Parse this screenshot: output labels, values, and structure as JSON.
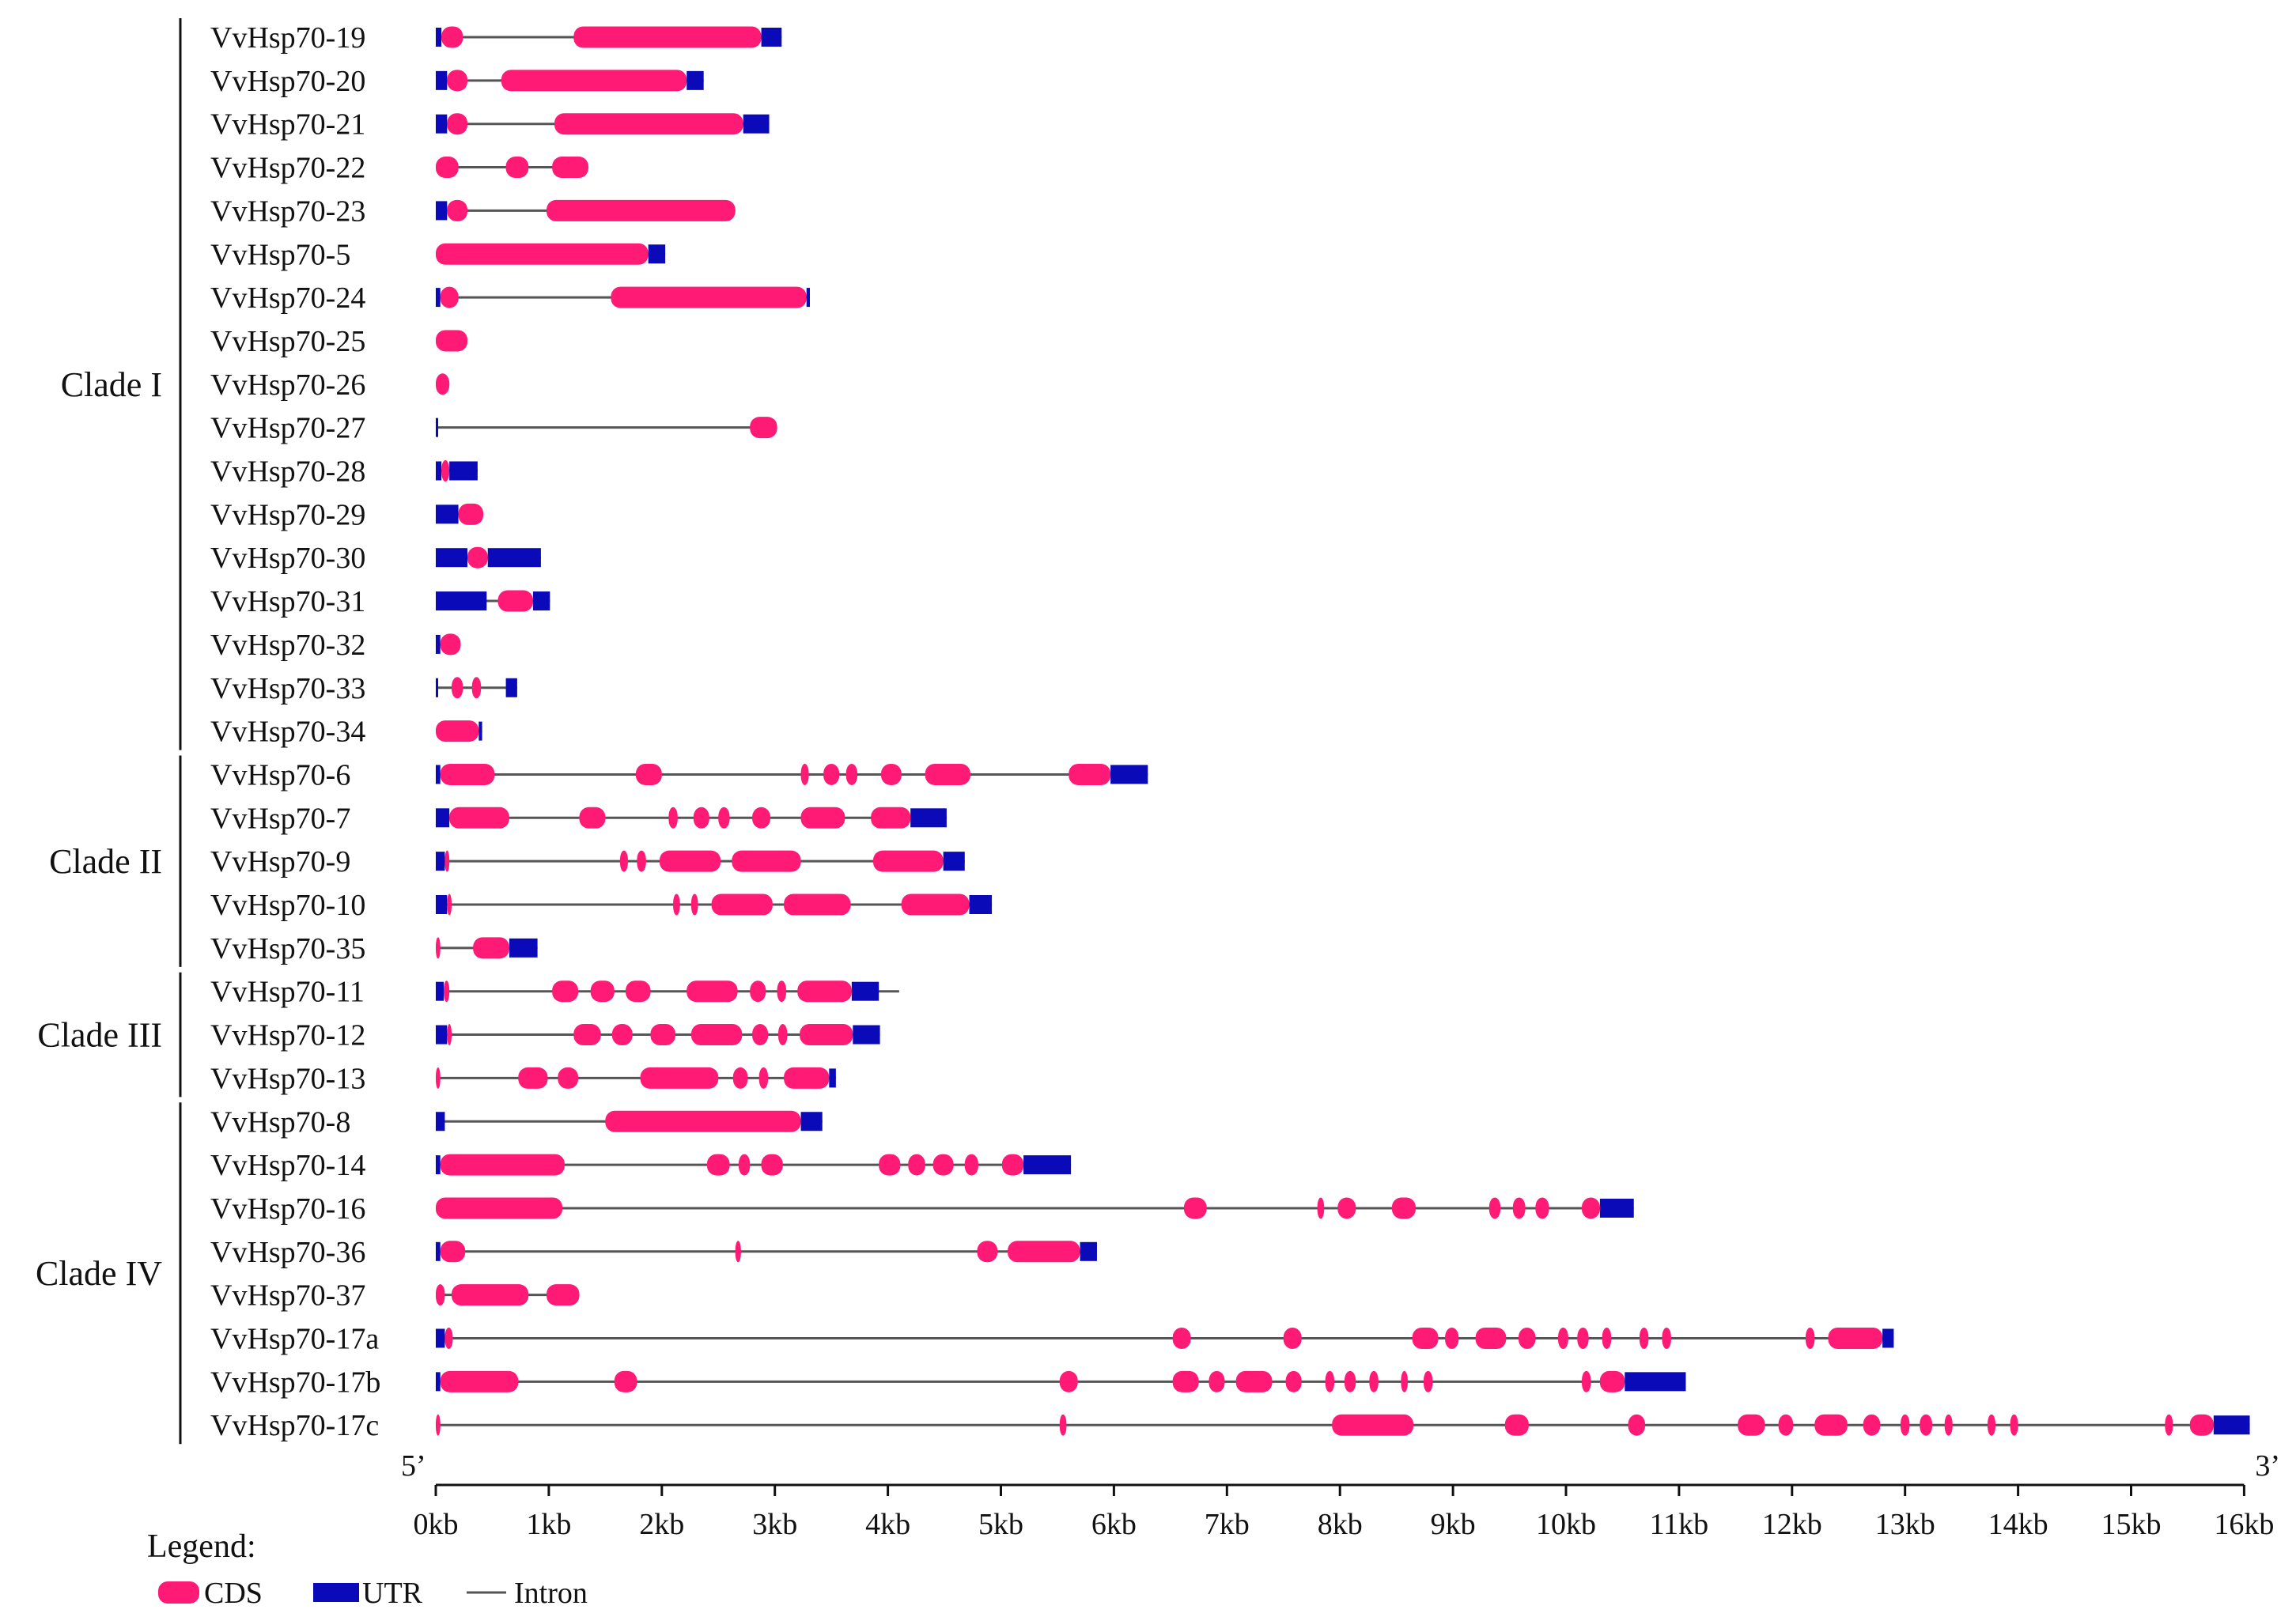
{
  "chart_data": {
    "type": "gene-structure",
    "axis": {
      "unit": "kb",
      "min": 0,
      "max": 16,
      "ticks": [
        "0kb",
        "1kb",
        "2kb",
        "3kb",
        "4kb",
        "5kb",
        "6kb",
        "7kb",
        "8kb",
        "9kb",
        "10kb",
        "11kb",
        "12kb",
        "13kb",
        "14kb",
        "15kb",
        "16kb"
      ],
      "start_label": "5’",
      "end_label": "3’"
    },
    "colors": {
      "cds": "#FF1A75",
      "utr": "#0A0AB8",
      "intron": "#555555",
      "axis": "#111111"
    },
    "legend": {
      "title": "Legend:",
      "items": [
        {
          "name": "CDS",
          "type": "cds"
        },
        {
          "name": "UTR",
          "type": "utr"
        },
        {
          "name": "Intron",
          "type": "intron"
        }
      ]
    },
    "clades": [
      {
        "name": "Clade I",
        "first": 0,
        "last": 16
      },
      {
        "name": "Clade II",
        "first": 17,
        "last": 21
      },
      {
        "name": "Clade III",
        "first": 22,
        "last": 24
      },
      {
        "name": "Clade IV",
        "first": 25,
        "last": 32
      }
    ],
    "genes": [
      {
        "name": "VvHsp70-19",
        "len": 3.06,
        "f": [
          [
            "u",
            0,
            0.05
          ],
          [
            "c",
            0.05,
            0.24
          ],
          [
            "c",
            1.22,
            2.88
          ],
          [
            "u",
            2.88,
            3.06
          ]
        ]
      },
      {
        "name": "VvHsp70-20",
        "len": 2.37,
        "f": [
          [
            "u",
            0,
            0.1
          ],
          [
            "c",
            0.1,
            0.28
          ],
          [
            "c",
            0.58,
            2.22
          ],
          [
            "u",
            2.22,
            2.37
          ]
        ]
      },
      {
        "name": "VvHsp70-21",
        "len": 2.95,
        "f": [
          [
            "u",
            0,
            0.1
          ],
          [
            "c",
            0.1,
            0.28
          ],
          [
            "c",
            1.05,
            2.72
          ],
          [
            "u",
            2.72,
            2.95
          ]
        ]
      },
      {
        "name": "VvHsp70-22",
        "len": 1.35,
        "f": [
          [
            "c",
            0,
            0.2
          ],
          [
            "c",
            0.62,
            0.82
          ],
          [
            "c",
            1.03,
            1.35
          ]
        ]
      },
      {
        "name": "VvHsp70-23",
        "len": 2.65,
        "f": [
          [
            "u",
            0,
            0.1
          ],
          [
            "c",
            0.1,
            0.28
          ],
          [
            "c",
            0.98,
            2.65
          ]
        ]
      },
      {
        "name": "VvHsp70-5",
        "len": 2.03,
        "f": [
          [
            "c",
            0,
            1.88
          ],
          [
            "u",
            1.88,
            2.03
          ]
        ]
      },
      {
        "name": "VvHsp70-24",
        "len": 3.31,
        "f": [
          [
            "u",
            0,
            0.04
          ],
          [
            "c",
            0.04,
            0.2
          ],
          [
            "c",
            1.55,
            3.28
          ],
          [
            "u",
            3.28,
            3.31
          ]
        ]
      },
      {
        "name": "VvHsp70-25",
        "len": 0.28,
        "f": [
          [
            "c",
            0,
            0.28
          ]
        ]
      },
      {
        "name": "VvHsp70-26",
        "len": 0.12,
        "f": [
          [
            "c",
            0,
            0.12
          ]
        ]
      },
      {
        "name": "VvHsp70-27",
        "len": 3.02,
        "f": [
          [
            "u",
            0,
            0.02
          ],
          [
            "c",
            2.78,
            3.02
          ]
        ]
      },
      {
        "name": "VvHsp70-28",
        "len": 0.37,
        "f": [
          [
            "u",
            0,
            0.05
          ],
          [
            "c",
            0.05,
            0.12
          ],
          [
            "u",
            0.12,
            0.37
          ]
        ]
      },
      {
        "name": "VvHsp70-29",
        "len": 0.42,
        "f": [
          [
            "u",
            0,
            0.2
          ],
          [
            "c",
            0.2,
            0.42
          ]
        ]
      },
      {
        "name": "VvHsp70-30",
        "len": 0.93,
        "f": [
          [
            "u",
            0,
            0.28
          ],
          [
            "c",
            0.28,
            0.46
          ],
          [
            "u",
            0.46,
            0.93
          ]
        ]
      },
      {
        "name": "VvHsp70-31",
        "len": 1.01,
        "f": [
          [
            "u",
            0,
            0.45
          ],
          [
            "c",
            0.55,
            0.86
          ],
          [
            "u",
            0.86,
            1.01
          ]
        ]
      },
      {
        "name": "VvHsp70-32",
        "len": 0.22,
        "f": [
          [
            "u",
            0,
            0.04
          ],
          [
            "c",
            0.04,
            0.22
          ]
        ]
      },
      {
        "name": "VvHsp70-33",
        "len": 0.72,
        "f": [
          [
            "u",
            0,
            0.02
          ],
          [
            "c",
            0.14,
            0.24
          ],
          [
            "c",
            0.32,
            0.4
          ],
          [
            "u",
            0.62,
            0.72
          ]
        ]
      },
      {
        "name": "VvHsp70-34",
        "len": 0.41,
        "f": [
          [
            "c",
            0,
            0.38
          ],
          [
            "u",
            0.38,
            0.41
          ]
        ]
      },
      {
        "name": "VvHsp70-6",
        "len": 6.3,
        "f": [
          [
            "u",
            0,
            0.04
          ],
          [
            "c",
            0.04,
            0.52
          ],
          [
            "c",
            1.77,
            2.0
          ],
          [
            "c",
            3.23,
            3.3
          ],
          [
            "c",
            3.43,
            3.57
          ],
          [
            "c",
            3.63,
            3.73
          ],
          [
            "c",
            3.94,
            4.12
          ],
          [
            "c",
            4.33,
            4.73
          ],
          [
            "c",
            5.6,
            5.97
          ],
          [
            "u",
            5.97,
            6.3
          ]
        ]
      },
      {
        "name": "VvHsp70-7",
        "len": 4.52,
        "f": [
          [
            "u",
            0,
            0.12
          ],
          [
            "c",
            0.12,
            0.65
          ],
          [
            "c",
            1.27,
            1.5
          ],
          [
            "c",
            2.06,
            2.14
          ],
          [
            "c",
            2.28,
            2.42
          ],
          [
            "c",
            2.5,
            2.6
          ],
          [
            "c",
            2.8,
            2.96
          ],
          [
            "c",
            3.23,
            3.62
          ],
          [
            "c",
            3.85,
            4.2
          ],
          [
            "u",
            4.2,
            4.52
          ]
        ]
      },
      {
        "name": "VvHsp70-9",
        "len": 4.68,
        "f": [
          [
            "u",
            0,
            0.08
          ],
          [
            "c",
            0.08,
            0.12
          ],
          [
            "c",
            1.63,
            1.7
          ],
          [
            "c",
            1.78,
            1.86
          ],
          [
            "c",
            1.98,
            2.52
          ],
          [
            "c",
            2.62,
            3.23
          ],
          [
            "c",
            3.87,
            4.49
          ],
          [
            "u",
            4.49,
            4.68
          ]
        ]
      },
      {
        "name": "VvHsp70-10",
        "len": 4.92,
        "f": [
          [
            "u",
            0,
            0.1
          ],
          [
            "c",
            0.1,
            0.14
          ],
          [
            "c",
            2.1,
            2.16
          ],
          [
            "c",
            2.26,
            2.32
          ],
          [
            "c",
            2.44,
            2.98
          ],
          [
            "c",
            3.08,
            3.67
          ],
          [
            "c",
            4.12,
            4.72
          ],
          [
            "u",
            4.72,
            4.92
          ]
        ]
      },
      {
        "name": "VvHsp70-35",
        "len": 0.9,
        "f": [
          [
            "c",
            0,
            0.04
          ],
          [
            "c",
            0.33,
            0.65
          ],
          [
            "u",
            0.65,
            0.9
          ]
        ]
      },
      {
        "name": "VvHsp70-11",
        "len": 4.1,
        "f": [
          [
            "u",
            0,
            0.07
          ],
          [
            "c",
            0.07,
            0.12
          ],
          [
            "c",
            1.03,
            1.26
          ],
          [
            "c",
            1.37,
            1.58
          ],
          [
            "c",
            1.68,
            1.9
          ],
          [
            "c",
            2.22,
            2.67
          ],
          [
            "c",
            2.78,
            2.92
          ],
          [
            "c",
            3.02,
            3.1
          ],
          [
            "c",
            3.2,
            3.68
          ],
          [
            "u",
            3.68,
            3.92
          ]
        ]
      },
      {
        "name": "VvHsp70-12",
        "len": 3.93,
        "f": [
          [
            "u",
            0,
            0.1
          ],
          [
            "c",
            0.1,
            0.14
          ],
          [
            "c",
            1.22,
            1.46
          ],
          [
            "c",
            1.56,
            1.74
          ],
          [
            "c",
            1.9,
            2.12
          ],
          [
            "c",
            2.26,
            2.71
          ],
          [
            "c",
            2.8,
            2.94
          ],
          [
            "c",
            3.03,
            3.11
          ],
          [
            "c",
            3.22,
            3.69
          ],
          [
            "u",
            3.69,
            3.93
          ]
        ]
      },
      {
        "name": "VvHsp70-13",
        "len": 3.54,
        "f": [
          [
            "c",
            0,
            0.04
          ],
          [
            "c",
            0.73,
            0.99
          ],
          [
            "c",
            1.08,
            1.26
          ],
          [
            "c",
            1.81,
            2.5
          ],
          [
            "c",
            2.63,
            2.76
          ],
          [
            "c",
            2.86,
            2.94
          ],
          [
            "c",
            3.08,
            3.48
          ],
          [
            "u",
            3.48,
            3.54
          ]
        ]
      },
      {
        "name": "VvHsp70-8",
        "len": 3.42,
        "f": [
          [
            "u",
            0,
            0.08
          ],
          [
            "c",
            1.5,
            3.23
          ],
          [
            "u",
            3.23,
            3.42
          ]
        ]
      },
      {
        "name": "VvHsp70-14",
        "len": 5.62,
        "f": [
          [
            "u",
            0,
            0.04
          ],
          [
            "c",
            0.04,
            1.14
          ],
          [
            "c",
            2.4,
            2.6
          ],
          [
            "c",
            2.68,
            2.78
          ],
          [
            "c",
            2.88,
            3.07
          ],
          [
            "c",
            3.92,
            4.11
          ],
          [
            "c",
            4.18,
            4.33
          ],
          [
            "c",
            4.4,
            4.58
          ],
          [
            "c",
            4.68,
            4.8
          ],
          [
            "c",
            5.01,
            5.2
          ],
          [
            "u",
            5.2,
            5.62
          ]
        ]
      },
      {
        "name": "VvHsp70-16",
        "len": 10.6,
        "f": [
          [
            "c",
            0,
            1.12
          ],
          [
            "c",
            6.62,
            6.82
          ],
          [
            "c",
            7.8,
            7.86
          ],
          [
            "c",
            7.98,
            8.14
          ],
          [
            "c",
            8.46,
            8.67
          ],
          [
            "c",
            9.32,
            9.42
          ],
          [
            "c",
            9.53,
            9.64
          ],
          [
            "c",
            9.73,
            9.85
          ],
          [
            "c",
            10.14,
            10.3
          ],
          [
            "u",
            10.3,
            10.6
          ]
        ]
      },
      {
        "name": "VvHsp70-36",
        "len": 5.85,
        "f": [
          [
            "u",
            0,
            0.04
          ],
          [
            "c",
            0.04,
            0.26
          ],
          [
            "c",
            2.65,
            2.7
          ],
          [
            "c",
            4.79,
            4.97
          ],
          [
            "c",
            5.06,
            5.7
          ],
          [
            "u",
            5.7,
            5.85
          ]
        ]
      },
      {
        "name": "VvHsp70-37",
        "len": 1.27,
        "f": [
          [
            "c",
            0,
            0.08
          ],
          [
            "c",
            0.14,
            0.82
          ],
          [
            "c",
            0.98,
            1.27
          ]
        ]
      },
      {
        "name": "VvHsp70-17a",
        "len": 12.9,
        "f": [
          [
            "u",
            0,
            0.08
          ],
          [
            "c",
            0.08,
            0.15
          ],
          [
            "c",
            6.52,
            6.68
          ],
          [
            "c",
            7.5,
            7.66
          ],
          [
            "c",
            8.64,
            8.87
          ],
          [
            "c",
            8.93,
            9.05
          ],
          [
            "c",
            9.2,
            9.47
          ],
          [
            "c",
            9.58,
            9.73
          ],
          [
            "c",
            9.93,
            10.02
          ],
          [
            "c",
            10.1,
            10.2
          ],
          [
            "c",
            10.32,
            10.4
          ],
          [
            "c",
            10.65,
            10.73
          ],
          [
            "c",
            10.85,
            10.93
          ],
          [
            "c",
            12.12,
            12.2
          ],
          [
            "c",
            12.32,
            12.8
          ],
          [
            "u",
            12.8,
            12.9
          ]
        ]
      },
      {
        "name": "VvHsp70-17b",
        "len": 11.06,
        "f": [
          [
            "u",
            0,
            0.04
          ],
          [
            "c",
            0.04,
            0.73
          ],
          [
            "c",
            1.58,
            1.78
          ],
          [
            "c",
            5.52,
            5.68
          ],
          [
            "c",
            6.52,
            6.75
          ],
          [
            "c",
            6.84,
            6.98
          ],
          [
            "c",
            7.08,
            7.4
          ],
          [
            "c",
            7.52,
            7.66
          ],
          [
            "c",
            7.87,
            7.95
          ],
          [
            "c",
            8.04,
            8.14
          ],
          [
            "c",
            8.26,
            8.34
          ],
          [
            "c",
            8.54,
            8.6
          ],
          [
            "c",
            8.74,
            8.82
          ],
          [
            "c",
            10.14,
            10.22
          ],
          [
            "c",
            10.3,
            10.52
          ],
          [
            "u",
            10.52,
            11.06
          ]
        ]
      },
      {
        "name": "VvHsp70-17c",
        "len": 16.05,
        "f": [
          [
            "c",
            0,
            0.04
          ],
          [
            "c",
            5.52,
            5.58
          ],
          [
            "c",
            7.93,
            8.65
          ],
          [
            "c",
            9.46,
            9.67
          ],
          [
            "c",
            10.55,
            10.7
          ],
          [
            "c",
            11.52,
            11.76
          ],
          [
            "c",
            11.88,
            12.01
          ],
          [
            "c",
            12.2,
            12.49
          ],
          [
            "c",
            12.63,
            12.78
          ],
          [
            "c",
            12.96,
            13.04
          ],
          [
            "c",
            13.13,
            13.24
          ],
          [
            "c",
            13.35,
            13.42
          ],
          [
            "c",
            13.73,
            13.8
          ],
          [
            "c",
            13.93,
            14.0
          ],
          [
            "c",
            15.3,
            15.37
          ],
          [
            "c",
            15.52,
            15.73
          ],
          [
            "u",
            15.73,
            16.05
          ]
        ]
      }
    ]
  }
}
